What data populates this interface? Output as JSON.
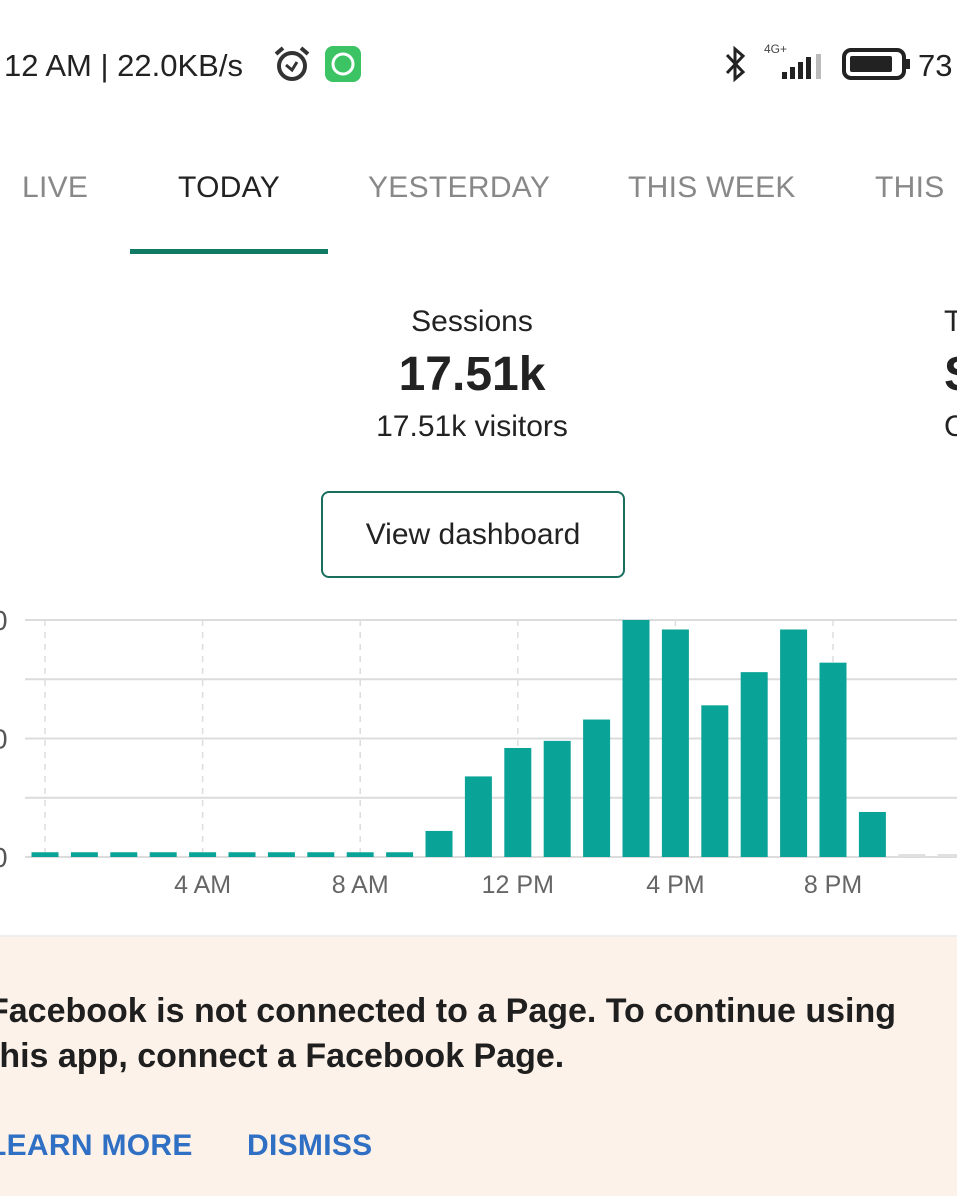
{
  "status_bar": {
    "time_speed": "12 AM | 22.0KB/s",
    "network": "4G+",
    "battery": "73"
  },
  "tabs": [
    {
      "label": "LIVE"
    },
    {
      "label": "TODAY",
      "active": true
    },
    {
      "label": "YESTERDAY"
    },
    {
      "label": "THIS WEEK"
    },
    {
      "label": "THIS"
    }
  ],
  "metrics": {
    "sessions": {
      "label": "Sessions",
      "value": "17.51k",
      "sub": "17.51k visitors"
    },
    "next": {
      "label": "T",
      "value": "S",
      "sub": "C"
    }
  },
  "view_dashboard": "View dashboard",
  "accent": "#0aa398",
  "chart_data": {
    "type": "bar",
    "title": "",
    "xlabel": "",
    "ylabel": "",
    "y_tick_labels": [
      "0",
      "0",
      "0"
    ],
    "x_tick_labels": [
      {
        "hour": 4,
        "label": "4 AM"
      },
      {
        "hour": 8,
        "label": "8 AM"
      },
      {
        "hour": 12,
        "label": "12 PM"
      },
      {
        "hour": 16,
        "label": "4 PM"
      },
      {
        "hour": 20,
        "label": "8 PM"
      }
    ],
    "note": "values relative to max bar (=100); y tick labels cut off",
    "ylim": [
      0,
      100
    ],
    "x": [
      0,
      1,
      2,
      3,
      4,
      5,
      6,
      7,
      8,
      9,
      10,
      11,
      12,
      13,
      14,
      15,
      16,
      17,
      18,
      19,
      20,
      21,
      22,
      23
    ],
    "values": [
      2,
      2,
      2,
      2,
      2,
      2,
      2,
      2,
      2,
      2,
      11,
      34,
      46,
      49,
      58,
      100,
      96,
      64,
      78,
      96,
      82,
      19,
      1,
      1
    ],
    "future_hours": [
      22,
      23
    ]
  },
  "banner": {
    "message": "Facebook is not connected to a Page. To continue using this app, connect a Facebook Page.",
    "learn_more": "LEARN MORE",
    "dismiss": "DISMISS"
  }
}
